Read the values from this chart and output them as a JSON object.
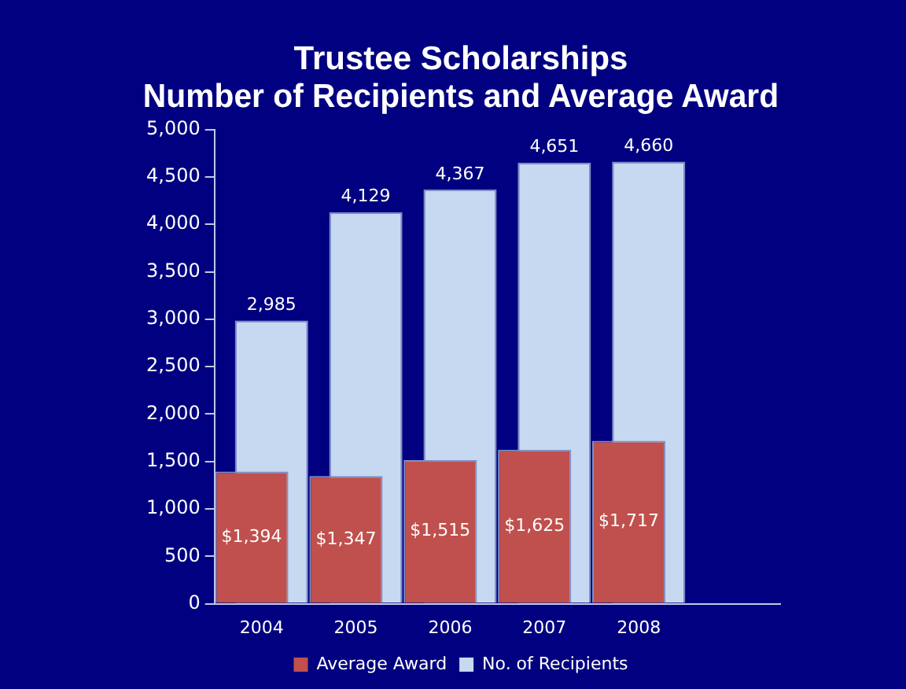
{
  "chart_data": {
    "type": "bar",
    "title": "Trustee Scholarships",
    "subtitle": "Number of Recipients and Average Award",
    "categories": [
      "2004",
      "2005",
      "2006",
      "2007",
      "2008",
      null
    ],
    "series": [
      {
        "name": "No. of Recipients",
        "color": "#c6d9f1",
        "values": [
          2985,
          4129,
          4367,
          4651,
          4660,
          null
        ],
        "value_labels": [
          "2,985",
          "4,129",
          "4,367",
          "4,651",
          "4,660",
          null
        ]
      },
      {
        "name": "Average Award",
        "color": "#c0504d",
        "values": [
          1394,
          1347,
          1515,
          1625,
          1717,
          null
        ],
        "value_labels": [
          "$1,394",
          "$1,347",
          "$1,515",
          "$1,625",
          "$1,717",
          null
        ]
      }
    ],
    "ylim": [
      0,
      5000
    ],
    "yticks": [
      {
        "value": 0,
        "label": "0"
      },
      {
        "value": 500,
        "label": "500"
      },
      {
        "value": 1000,
        "label": "1,000"
      },
      {
        "value": 1500,
        "label": "1,500"
      },
      {
        "value": 2000,
        "label": "2,000"
      },
      {
        "value": 2500,
        "label": "2,500"
      },
      {
        "value": 3000,
        "label": "3,000"
      },
      {
        "value": 3500,
        "label": "3,500"
      },
      {
        "value": 4000,
        "label": "4,000"
      },
      {
        "value": 4500,
        "label": "4,500"
      },
      {
        "value": 5000,
        "label": "5,000"
      }
    ],
    "grid": false,
    "legend": "bottom"
  }
}
